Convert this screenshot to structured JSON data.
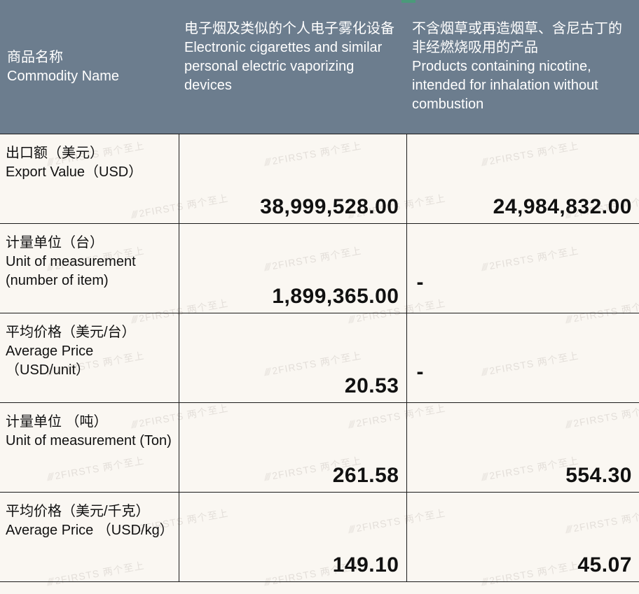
{
  "watermark": "2FIRSTS 两个至上",
  "header": {
    "label_cn": "商品名称",
    "label_en": "Commodity Name",
    "col_a_cn": "电子烟及类似的个人电子雾化设备",
    "col_a_en": "Electronic cigarettes and similar personal electric vaporizing devices",
    "col_b_cn": "不含烟草或再造烟草、含尼古丁的非经燃烧吸用的产品",
    "col_b_en": "Products containing nicotine, intended for inhalation without combustion",
    "bg_color": "#6c7d8e",
    "text_color": "#ffffff"
  },
  "rows": [
    {
      "label_cn": "出口额（美元）",
      "label_en": " Export Value（USD）",
      "val_a": "38,999,528.00",
      "val_b": "24,984,832.00",
      "b_is_dash": false
    },
    {
      "label_cn": "计量单位（台）",
      "label_en": "Unit of measurement (number of item)",
      "val_a": "1,899,365.00",
      "val_b": "-",
      "b_is_dash": true
    },
    {
      "label_cn": "平均价格（美元/台）",
      "label_en": "Average Price （USD/unit）",
      "val_a": "20.53",
      "val_b": "-",
      "b_is_dash": true
    },
    {
      "label_cn": "计量单位 （吨）",
      "label_en": "Unit of measurement (Ton)",
      "val_a": "261.58",
      "val_b": "554.30",
      "b_is_dash": false
    },
    {
      "label_cn": "平均价格（美元/千克）",
      "label_en": "Average Price （USD/kg）",
      "val_a": "149.10",
      "val_b": "45.07",
      "b_is_dash": false
    }
  ],
  "styling": {
    "body_bg": "#faf7f2",
    "border_color": "#1a1a1a",
    "value_font_size": 30,
    "value_font_weight": 700,
    "label_font_size": 20,
    "header_font_size": 20,
    "accent_color": "#4a9a7a"
  }
}
